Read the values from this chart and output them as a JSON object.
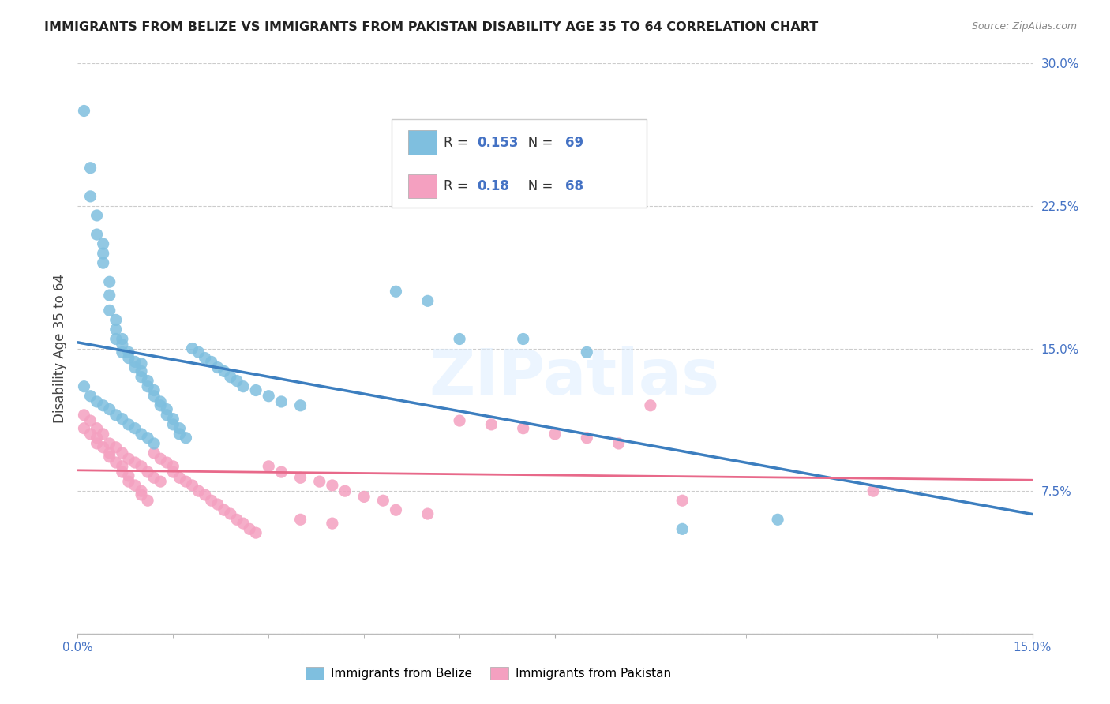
{
  "title": "IMMIGRANTS FROM BELIZE VS IMMIGRANTS FROM PAKISTAN DISABILITY AGE 35 TO 64 CORRELATION CHART",
  "source": "Source: ZipAtlas.com",
  "ylabel": "Disability Age 35 to 64",
  "xlim": [
    0.0,
    0.15
  ],
  "ylim": [
    0.0,
    0.3
  ],
  "xticks": [
    0.0,
    0.015,
    0.03,
    0.045,
    0.06,
    0.075,
    0.09,
    0.105,
    0.12,
    0.135,
    0.15
  ],
  "xticklabels_major": {
    "0.0": "0.0%",
    "0.075": "",
    "0.15": "15.0%"
  },
  "yticks": [
    0.0,
    0.075,
    0.15,
    0.225,
    0.3
  ],
  "yticklabels": [
    "",
    "7.5%",
    "15.0%",
    "22.5%",
    "30.0%"
  ],
  "belize_color": "#7fbfdf",
  "pakistan_color": "#f4a0c0",
  "belize_line_color": "#3c7ebf",
  "pakistan_line_color": "#e8698a",
  "belize_dashed_color": "#a8c8e8",
  "belize_R": 0.153,
  "belize_N": 69,
  "pakistan_R": 0.18,
  "pakistan_N": 68,
  "background_color": "#ffffff",
  "grid_color": "#cccccc",
  "text_color_blue": "#4472c4",
  "belize_x": [
    0.001,
    0.002,
    0.002,
    0.003,
    0.003,
    0.004,
    0.004,
    0.004,
    0.005,
    0.005,
    0.005,
    0.006,
    0.006,
    0.006,
    0.007,
    0.007,
    0.007,
    0.008,
    0.008,
    0.009,
    0.009,
    0.01,
    0.01,
    0.01,
    0.011,
    0.011,
    0.012,
    0.012,
    0.013,
    0.013,
    0.014,
    0.014,
    0.015,
    0.015,
    0.016,
    0.016,
    0.017,
    0.018,
    0.019,
    0.02,
    0.021,
    0.022,
    0.023,
    0.024,
    0.025,
    0.026,
    0.028,
    0.03,
    0.032,
    0.035,
    0.001,
    0.002,
    0.003,
    0.004,
    0.005,
    0.006,
    0.007,
    0.008,
    0.009,
    0.01,
    0.011,
    0.012,
    0.05,
    0.055,
    0.06,
    0.07,
    0.08,
    0.095,
    0.11
  ],
  "belize_y": [
    0.275,
    0.245,
    0.23,
    0.22,
    0.21,
    0.205,
    0.2,
    0.195,
    0.185,
    0.178,
    0.17,
    0.165,
    0.16,
    0.155,
    0.155,
    0.152,
    0.148,
    0.148,
    0.145,
    0.143,
    0.14,
    0.142,
    0.138,
    0.135,
    0.133,
    0.13,
    0.128,
    0.125,
    0.122,
    0.12,
    0.118,
    0.115,
    0.113,
    0.11,
    0.108,
    0.105,
    0.103,
    0.15,
    0.148,
    0.145,
    0.143,
    0.14,
    0.138,
    0.135,
    0.133,
    0.13,
    0.128,
    0.125,
    0.122,
    0.12,
    0.13,
    0.125,
    0.122,
    0.12,
    0.118,
    0.115,
    0.113,
    0.11,
    0.108,
    0.105,
    0.103,
    0.1,
    0.18,
    0.175,
    0.155,
    0.155,
    0.148,
    0.055,
    0.06
  ],
  "pakistan_x": [
    0.001,
    0.002,
    0.003,
    0.003,
    0.004,
    0.005,
    0.005,
    0.006,
    0.007,
    0.007,
    0.008,
    0.008,
    0.009,
    0.01,
    0.01,
    0.011,
    0.012,
    0.013,
    0.014,
    0.015,
    0.015,
    0.016,
    0.017,
    0.018,
    0.019,
    0.02,
    0.021,
    0.022,
    0.023,
    0.024,
    0.025,
    0.026,
    0.027,
    0.028,
    0.03,
    0.032,
    0.035,
    0.038,
    0.04,
    0.042,
    0.045,
    0.048,
    0.05,
    0.055,
    0.06,
    0.065,
    0.07,
    0.075,
    0.08,
    0.085,
    0.001,
    0.002,
    0.003,
    0.004,
    0.005,
    0.006,
    0.007,
    0.008,
    0.009,
    0.01,
    0.011,
    0.012,
    0.013,
    0.035,
    0.04,
    0.125,
    0.09,
    0.095
  ],
  "pakistan_y": [
    0.108,
    0.105,
    0.103,
    0.1,
    0.098,
    0.095,
    0.093,
    0.09,
    0.088,
    0.085,
    0.083,
    0.08,
    0.078,
    0.075,
    0.073,
    0.07,
    0.095,
    0.092,
    0.09,
    0.088,
    0.085,
    0.082,
    0.08,
    0.078,
    0.075,
    0.073,
    0.07,
    0.068,
    0.065,
    0.063,
    0.06,
    0.058,
    0.055,
    0.053,
    0.088,
    0.085,
    0.082,
    0.08,
    0.078,
    0.075,
    0.072,
    0.07,
    0.065,
    0.063,
    0.112,
    0.11,
    0.108,
    0.105,
    0.103,
    0.1,
    0.115,
    0.112,
    0.108,
    0.105,
    0.1,
    0.098,
    0.095,
    0.092,
    0.09,
    0.088,
    0.085,
    0.082,
    0.08,
    0.06,
    0.058,
    0.075,
    0.12,
    0.07
  ]
}
